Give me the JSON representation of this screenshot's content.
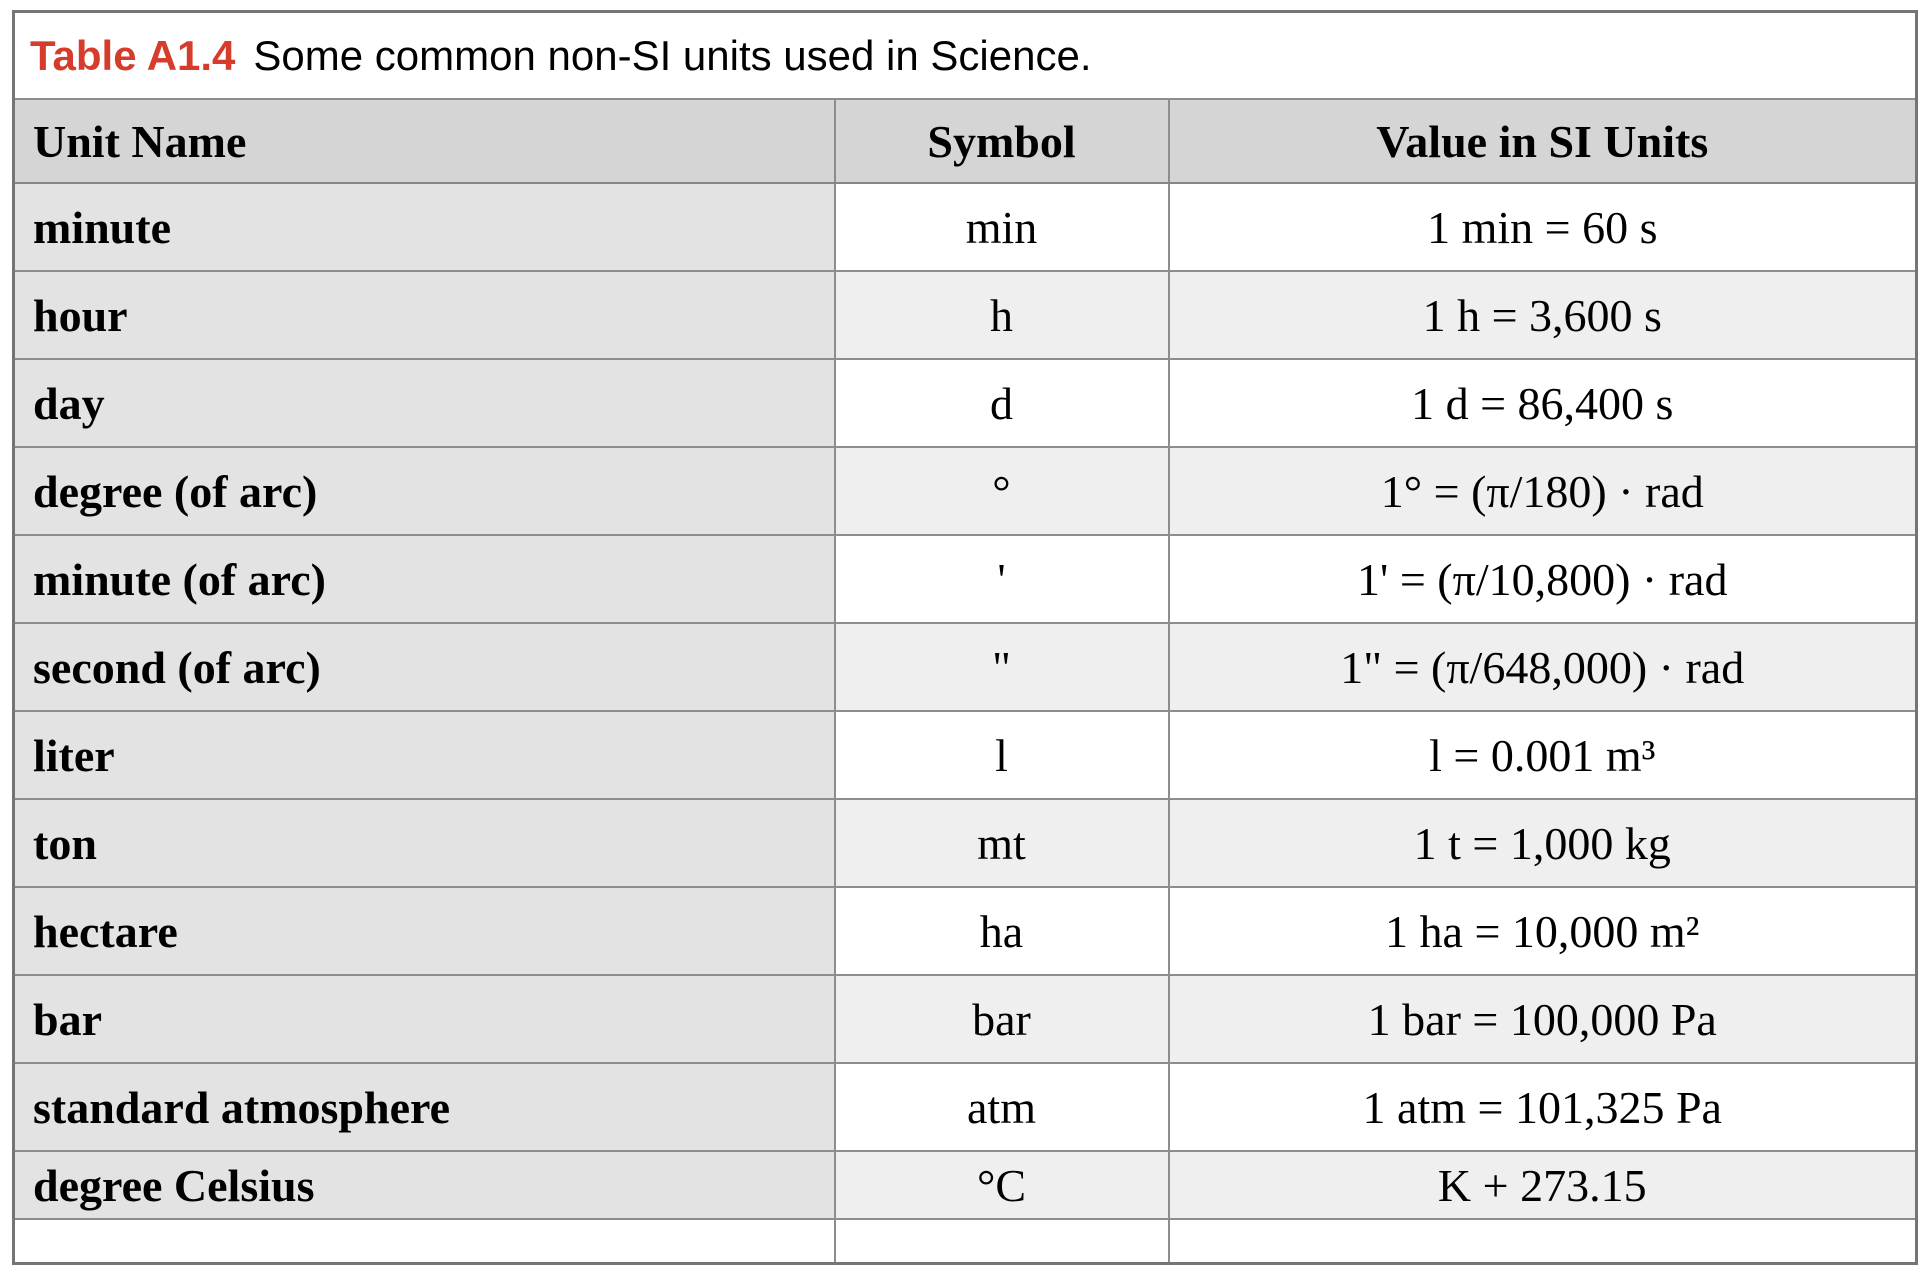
{
  "title": {
    "label": "Table A1.4",
    "text": "Some common non-SI units used in Science."
  },
  "table": {
    "columns": [
      "Unit Name",
      "Symbol",
      "Value in SI Units"
    ],
    "rows": [
      {
        "name": "minute",
        "symbol": "min",
        "value": "1 min = 60 s"
      },
      {
        "name": "hour",
        "symbol": "h",
        "value": "1 h = 3,600 s"
      },
      {
        "name": "day",
        "symbol": "d",
        "value": "1 d = 86,400 s"
      },
      {
        "name": "degree (of arc)",
        "symbol": "°",
        "value": "1° = (π/180) · rad"
      },
      {
        "name": "minute (of arc)",
        "symbol": "'",
        "value": "1' = (π/10,800) · rad"
      },
      {
        "name": "second (of arc)",
        "symbol": "\"",
        "value": "1\" = (π/648,000) · rad"
      },
      {
        "name": "liter",
        "symbol": "l",
        "value": "l = 0.001 m³"
      },
      {
        "name": "ton",
        "symbol": "mt",
        "value": "1 t = 1,000 kg"
      },
      {
        "name": "hectare",
        "symbol": "ha",
        "value": "1 ha = 10,000 m²"
      },
      {
        "name": "bar",
        "symbol": "bar",
        "value": "1 bar = 100,000 Pa"
      },
      {
        "name": "standard atmosphere",
        "symbol": "atm",
        "value": "1 atm = 101,325 Pa"
      },
      {
        "name": "degree Celsius",
        "symbol": "°C",
        "value": "K + 273.15"
      }
    ]
  },
  "colors": {
    "accent_red": "#d53c2b",
    "header_bg": "#d5d5d5",
    "name_column_bg": "#e3e3e3",
    "stripe_bg": "#efefef",
    "border_gray": "#8d8d8d"
  }
}
